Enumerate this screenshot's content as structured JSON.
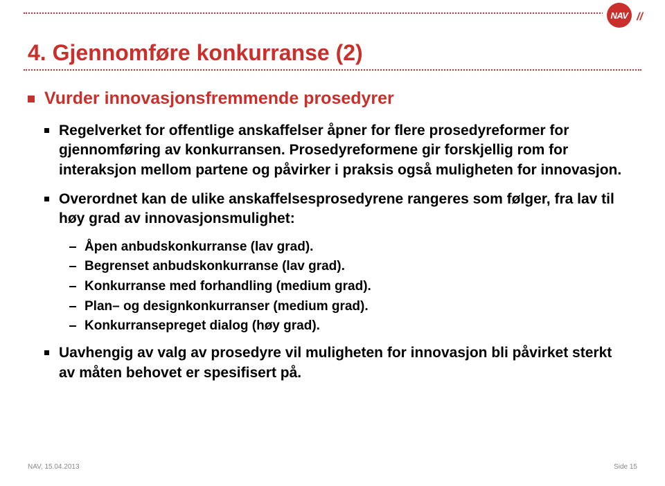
{
  "logo": {
    "text": "NAV",
    "slashes": "//"
  },
  "title": "4. Gjennomføre konkurranse (2)",
  "colors": {
    "accent": "#c9302c",
    "body_text": "#000000",
    "footer_text": "#888888",
    "background": "#ffffff"
  },
  "typography": {
    "title_fontsize": 32,
    "lvl1_fontsize": 25,
    "lvl2_fontsize": 21,
    "lvl3_fontsize": 19,
    "footer_fontsize": 10,
    "font_family": "Arial"
  },
  "bullets": {
    "lvl1": {
      "text": "Vurder innovasjonsfremmende prosedyrer"
    },
    "lvl2_items": [
      {
        "text": "Regelverket for offentlige anskaffelser åpner for flere prosedyreformer for gjennomføring av konkurransen. Prosedyreformene gir forskjellig rom for interaksjon mellom partene og påvirker i praksis også muligheten for innovasjon.",
        "sub": []
      },
      {
        "text": "Overordnet kan de ulike anskaffelsesprosedyrene rangeres som følger, fra lav til høy grad av innovasjonsmulighet:",
        "sub": [
          "Åpen anbudskonkurranse (lav grad).",
          "Begrenset anbudskonkurranse (lav grad).",
          "Konkurranse med forhandling (medium grad).",
          "Plan– og designkonkurranser (medium grad).",
          "Konkurransepreget dialog (høy grad)."
        ]
      },
      {
        "text": "Uavhengig av valg av prosedyre vil muligheten for innovasjon bli påvirket sterkt av måten behovet er spesifisert på.",
        "sub": []
      }
    ]
  },
  "footer": {
    "left": "NAV, 15.04.2013",
    "right": "Side 15"
  }
}
